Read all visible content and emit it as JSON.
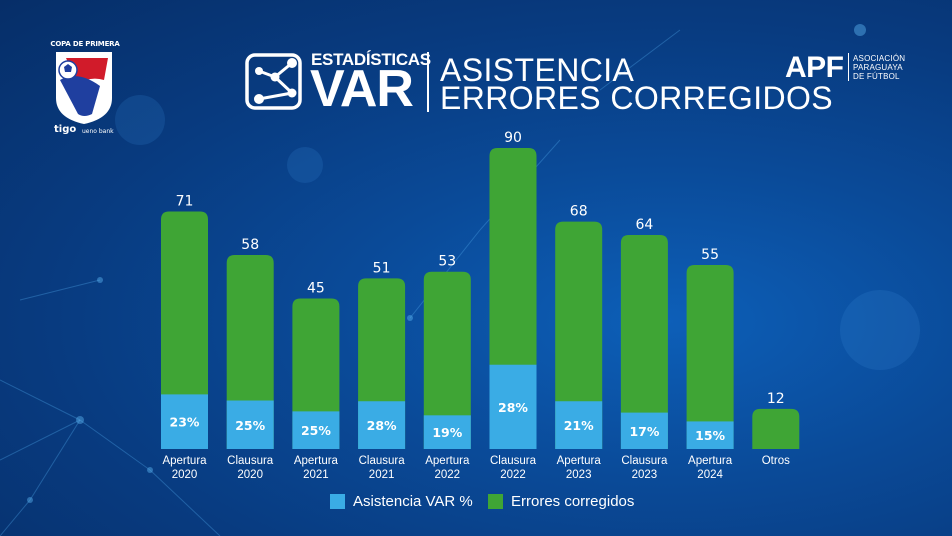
{
  "branding": {
    "tournament": "COPA DE PRIMERA",
    "sponsor_1": "tigo",
    "sponsor_2": "ueno bank",
    "header_small": "ESTADÍSTICAS",
    "header_big": "VAR",
    "title_line_1": "ASISTENCIA",
    "title_line_2": "ERRORES CORREGIDOS",
    "org_abbr": "APF",
    "org_name_1": "ASOCIACIÓN",
    "org_name_2": "PARAGUAYA",
    "org_name_3": "DE FÚTBOL"
  },
  "colors": {
    "green": "#3fa535",
    "blue": "#3aace5",
    "background": "#0a4a98"
  },
  "chart_data": {
    "type": "bar",
    "stacked": true,
    "categories": [
      [
        "Apertura",
        "2020"
      ],
      [
        "Clausura",
        "2020"
      ],
      [
        "Apertura",
        "2021"
      ],
      [
        "Clausura",
        "2021"
      ],
      [
        "Apertura",
        "2022"
      ],
      [
        "Clausura",
        "2022"
      ],
      [
        "Apertura",
        "2023"
      ],
      [
        "Clausura",
        "2023"
      ],
      [
        "Apertura",
        "2024"
      ],
      [
        "Otros"
      ]
    ],
    "totals": [
      71,
      58,
      45,
      51,
      53,
      90,
      68,
      64,
      55,
      12
    ],
    "assist_pct": [
      23,
      25,
      25,
      28,
      19,
      28,
      21,
      17,
      15,
      null
    ],
    "series": [
      {
        "name": "Asistencia VAR %",
        "color": "#3aace5"
      },
      {
        "name": "Errores corregidos",
        "color": "#3fa535"
      }
    ],
    "title": "ASISTENCIA ERRORES CORREGIDOS",
    "ylim": [
      0,
      90
    ],
    "legend_position": "bottom-center",
    "grid": false
  }
}
